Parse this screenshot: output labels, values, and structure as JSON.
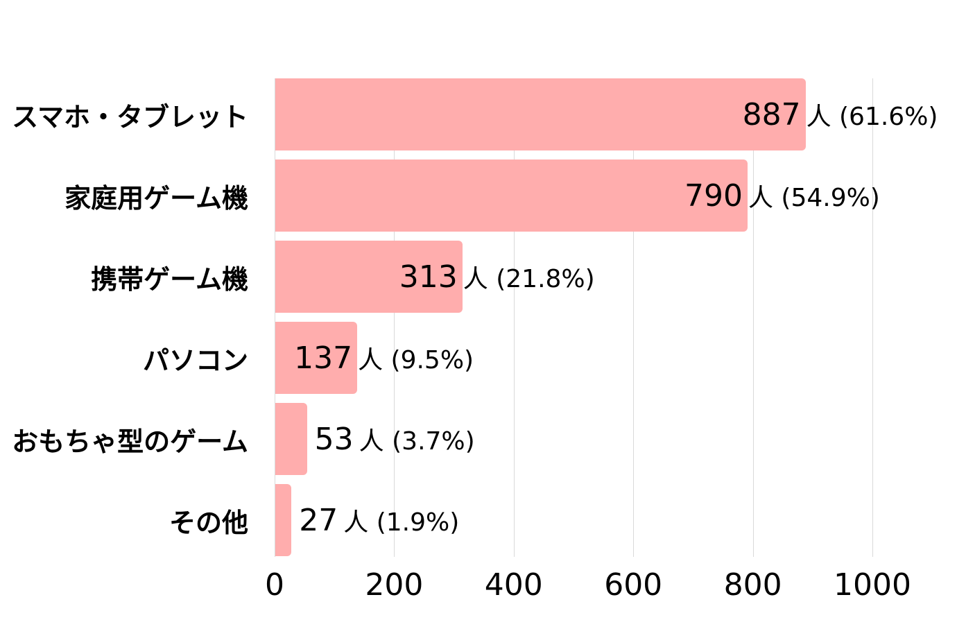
{
  "chart_data": {
    "type": "bar",
    "orientation": "horizontal",
    "title": "",
    "xlabel": "",
    "ylabel": "",
    "categories": [
      "スマホ・タブレット",
      "家庭用ゲーム機",
      "携帯ゲーム機",
      "パソコン",
      "おもちゃ型のゲーム",
      "その他"
    ],
    "values": [
      887,
      790,
      313,
      137,
      53,
      27
    ],
    "percentages": [
      "61.6%",
      "54.9%",
      "21.8%",
      "9.5%",
      "3.7%",
      "1.9%"
    ],
    "unit": "人",
    "value_labels": [
      {
        "num": "887",
        "rest": "人 (61.6%)"
      },
      {
        "num": "790",
        "rest": "人 (54.9%)"
      },
      {
        "num": "313",
        "rest": "人 (21.8%)"
      },
      {
        "num": "137",
        "rest": "人 (9.5%)"
      },
      {
        "num": "53",
        "rest": "人 (3.7%)"
      },
      {
        "num": "27",
        "rest": "人 (1.9%)"
      }
    ],
    "xlim": [
      0,
      1000
    ],
    "xticks": [
      "0",
      "200",
      "400",
      "600",
      "800",
      "1000"
    ],
    "grid": true,
    "legend": null,
    "bar_color": "#ffadad"
  }
}
